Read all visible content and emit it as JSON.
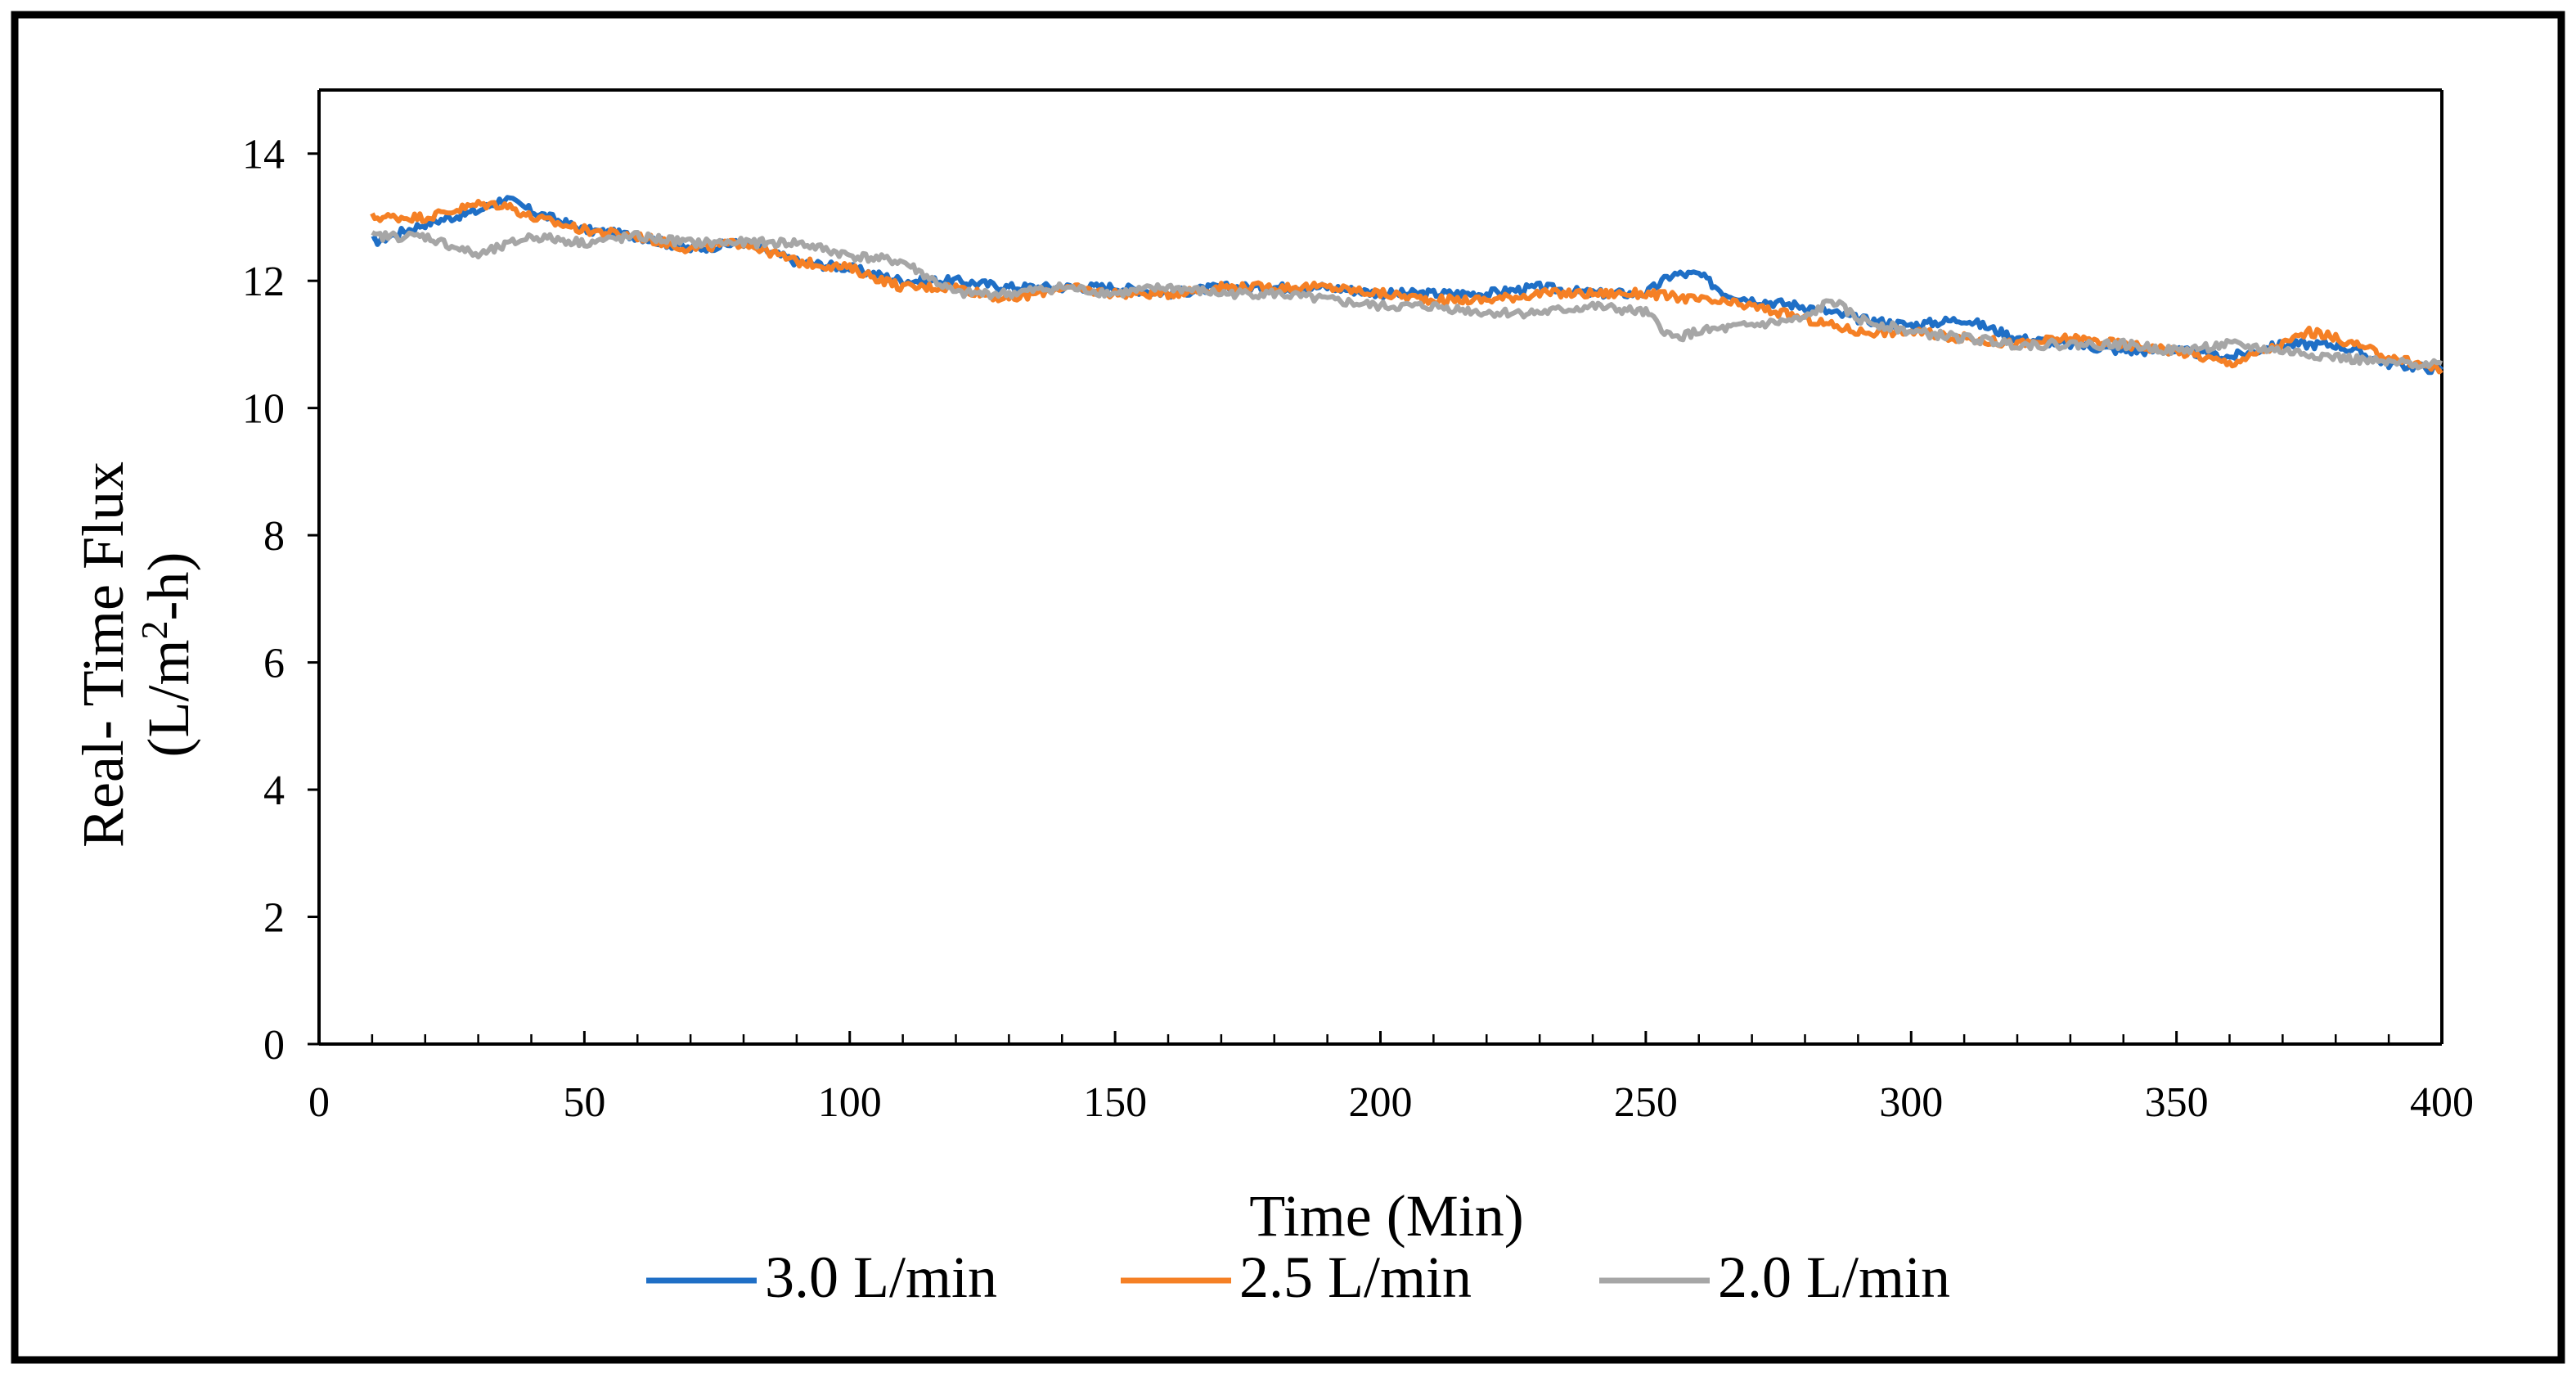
{
  "chart_data": {
    "type": "line",
    "title": "",
    "xlabel": "Time (Min)",
    "ylabel_line1": "Real- Time Flux",
    "ylabel_line2_prefix": "(L/m",
    "ylabel_line2_sup": "2",
    "ylabel_line2_suffix": "-h)",
    "xlim": [
      0,
      400
    ],
    "ylim": [
      0,
      15
    ],
    "x_ticks": [
      0,
      50,
      100,
      150,
      200,
      250,
      300,
      350,
      400
    ],
    "x_tick_labels": [
      "0",
      "50",
      "100",
      "150",
      "200",
      "250",
      "300",
      "350",
      "400"
    ],
    "y_ticks": [
      0,
      2,
      4,
      6,
      8,
      10,
      12,
      14
    ],
    "y_tick_labels": [
      "0",
      "2",
      "4",
      "6",
      "8",
      "10",
      "12",
      "14"
    ],
    "grid": false,
    "legend_position": "bottom",
    "series": [
      {
        "name": "3.0 L/min",
        "color": "#1f6fc6",
        "x": [
          10,
          20,
          30,
          35,
          40,
          50,
          60,
          70,
          80,
          90,
          100,
          110,
          120,
          130,
          140,
          150,
          160,
          170,
          180,
          190,
          200,
          210,
          220,
          230,
          240,
          250,
          255,
          260,
          265,
          270,
          280,
          290,
          300,
          310,
          320,
          330,
          340,
          350,
          360,
          370,
          380,
          390,
          400
        ],
        "y": [
          12.6,
          12.9,
          13.1,
          13.3,
          13.1,
          12.8,
          12.7,
          12.5,
          12.6,
          12.3,
          12.2,
          12.0,
          12.0,
          11.9,
          11.9,
          11.9,
          11.8,
          11.9,
          11.9,
          11.9,
          11.8,
          11.8,
          11.8,
          11.9,
          11.8,
          11.8,
          12.1,
          12.1,
          11.8,
          11.7,
          11.6,
          11.4,
          11.3,
          11.4,
          11.1,
          11.0,
          10.9,
          10.9,
          10.8,
          11.0,
          11.0,
          10.7,
          10.6
        ]
      },
      {
        "name": "2.5 L/min",
        "color": "#f58025",
        "x": [
          10,
          20,
          30,
          35,
          40,
          50,
          60,
          70,
          80,
          90,
          100,
          110,
          120,
          130,
          140,
          150,
          160,
          170,
          180,
          190,
          200,
          210,
          220,
          230,
          240,
          250,
          260,
          270,
          280,
          290,
          300,
          310,
          320,
          330,
          340,
          350,
          360,
          370,
          375,
          380,
          390,
          400
        ],
        "y": [
          13.0,
          13.0,
          13.2,
          13.2,
          13.0,
          12.8,
          12.7,
          12.5,
          12.6,
          12.3,
          12.2,
          11.9,
          11.9,
          11.7,
          11.9,
          11.8,
          11.8,
          11.9,
          11.9,
          11.9,
          11.8,
          11.7,
          11.7,
          11.8,
          11.8,
          11.8,
          11.7,
          11.6,
          11.4,
          11.2,
          11.2,
          11.1,
          11.0,
          11.1,
          11.0,
          10.9,
          10.7,
          11.0,
          11.2,
          11.1,
          10.8,
          10.6
        ]
      },
      {
        "name": "2.0 L/min",
        "color": "#a6a6a6",
        "x": [
          10,
          20,
          30,
          40,
          50,
          60,
          70,
          80,
          90,
          100,
          110,
          120,
          130,
          140,
          150,
          160,
          170,
          180,
          190,
          200,
          210,
          220,
          230,
          240,
          250,
          255,
          260,
          270,
          280,
          285,
          290,
          300,
          310,
          320,
          330,
          340,
          350,
          360,
          370,
          380,
          390,
          400
        ],
        "y": [
          12.7,
          12.7,
          12.4,
          12.7,
          12.6,
          12.7,
          12.6,
          12.6,
          12.6,
          12.4,
          12.3,
          11.8,
          11.8,
          11.9,
          11.8,
          11.9,
          11.8,
          11.8,
          11.7,
          11.6,
          11.6,
          11.5,
          11.5,
          11.6,
          11.5,
          11.1,
          11.2,
          11.3,
          11.4,
          11.7,
          11.4,
          11.2,
          11.1,
          11.0,
          11.0,
          11.0,
          10.9,
          11.0,
          10.9,
          10.8,
          10.7,
          10.7
        ]
      }
    ]
  }
}
